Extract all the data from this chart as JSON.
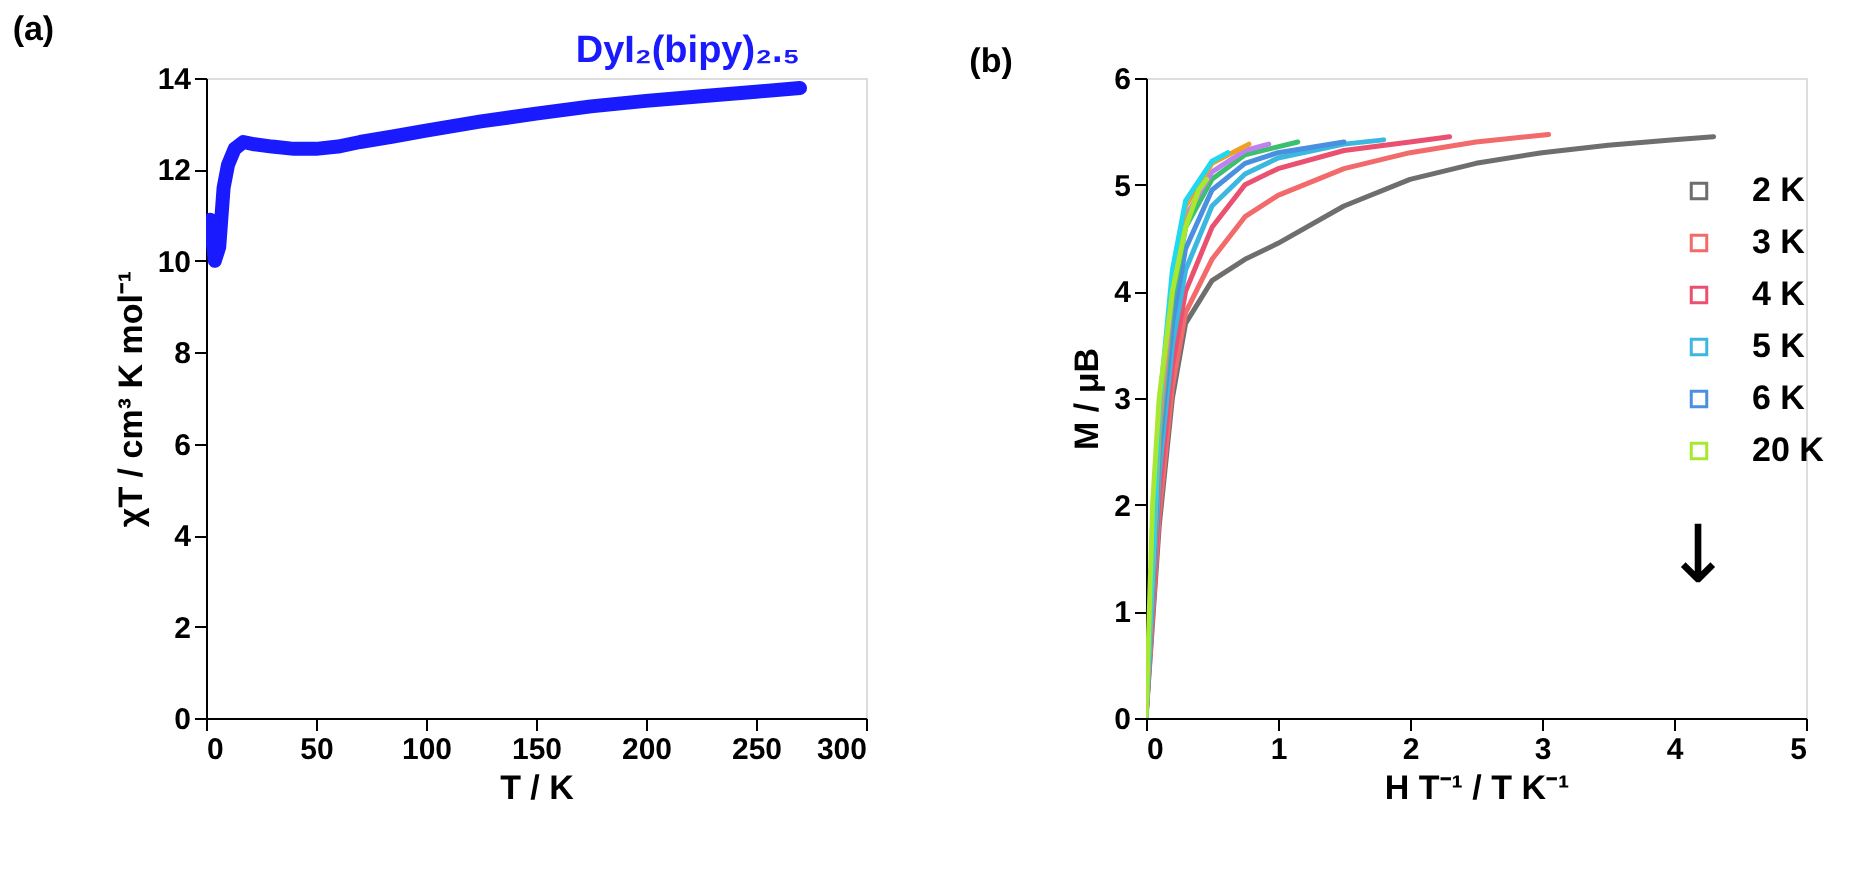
{
  "chart_data": [
    {
      "type": "line",
      "title": "(a)",
      "xlabel": "T / K",
      "ylabel": "χT / cm³ K mol⁻¹",
      "xlim": [
        0,
        300
      ],
      "xticks": [
        0,
        50,
        100,
        150,
        200,
        250,
        300
      ],
      "ylim": [
        0,
        14
      ],
      "yticks": [
        0,
        2,
        4,
        6,
        8,
        10,
        12,
        14
      ],
      "grid": false,
      "legend": false,
      "series": [
        {
          "name": "DyI₂(bipy)₂.₅",
          "color": "#1a1aff",
          "x": [
            2,
            4,
            6,
            8,
            10,
            13,
            17,
            22,
            30,
            40,
            50,
            60,
            70,
            85,
            100,
            125,
            150,
            175,
            200,
            225,
            250,
            270
          ],
          "values": [
            10.9,
            10.0,
            10.3,
            11.6,
            12.1,
            12.45,
            12.6,
            12.55,
            12.5,
            12.45,
            12.45,
            12.5,
            12.6,
            12.72,
            12.85,
            13.05,
            13.22,
            13.38,
            13.5,
            13.6,
            13.7,
            13.78
          ]
        }
      ]
    },
    {
      "type": "line",
      "title": "(b)",
      "xlabel": "H T⁻¹ / T K⁻¹",
      "ylabel": "M / μB",
      "xlim": [
        0,
        5
      ],
      "xticks": [
        0,
        1,
        2,
        3,
        4,
        5
      ],
      "ylim": [
        0,
        6
      ],
      "yticks": [
        0,
        1,
        2,
        3,
        4,
        5,
        6
      ],
      "grid": false,
      "legend": "right",
      "annotations": [
        "↓"
      ],
      "series": [
        {
          "name": "2 K",
          "color": "#6e6e6e",
          "x": [
            0,
            0.1,
            0.2,
            0.3,
            0.5,
            0.75,
            1.0,
            1.5,
            2.0,
            2.5,
            3.0,
            3.5,
            4.0,
            4.3
          ],
          "values": [
            0,
            1.8,
            3.0,
            3.7,
            4.1,
            4.3,
            4.45,
            4.8,
            5.05,
            5.2,
            5.3,
            5.37,
            5.42,
            5.45
          ]
        },
        {
          "name": "3 K",
          "color": "#f26a6a",
          "x": [
            0,
            0.1,
            0.2,
            0.3,
            0.5,
            0.75,
            1.0,
            1.5,
            2.0,
            2.5,
            3.05
          ],
          "values": [
            0,
            1.9,
            3.1,
            3.8,
            4.3,
            4.7,
            4.9,
            5.15,
            5.3,
            5.4,
            5.47
          ]
        },
        {
          "name": "4 K",
          "color": "#ea5070",
          "x": [
            0,
            0.1,
            0.2,
            0.3,
            0.5,
            0.75,
            1.0,
            1.5,
            2.0,
            2.3
          ],
          "values": [
            0,
            2.1,
            3.3,
            4.0,
            4.6,
            5.0,
            5.15,
            5.32,
            5.4,
            5.45
          ]
        },
        {
          "name": "5 K",
          "color": "#3cb8e0",
          "x": [
            0,
            0.1,
            0.2,
            0.3,
            0.5,
            0.75,
            1.0,
            1.5,
            1.8
          ],
          "values": [
            0,
            2.3,
            3.5,
            4.2,
            4.8,
            5.1,
            5.25,
            5.38,
            5.42
          ]
        },
        {
          "name": "6 K",
          "color": "#4a8fe0",
          "x": [
            0,
            0.1,
            0.2,
            0.3,
            0.5,
            0.75,
            1.0,
            1.5
          ],
          "values": [
            0,
            2.5,
            3.7,
            4.4,
            4.95,
            5.2,
            5.3,
            5.4
          ]
        },
        {
          "color": "#3cc070",
          "x": [
            0,
            0.1,
            0.2,
            0.3,
            0.5,
            0.75,
            1.15
          ],
          "values": [
            0,
            2.6,
            3.9,
            4.6,
            5.05,
            5.28,
            5.4
          ]
        },
        {
          "color": "#c080f0",
          "x": [
            0,
            0.1,
            0.2,
            0.3,
            0.5,
            0.75,
            0.93
          ],
          "values": [
            0,
            2.7,
            4.0,
            4.7,
            5.12,
            5.32,
            5.38
          ]
        },
        {
          "color": "#f0a020",
          "x": [
            0,
            0.1,
            0.2,
            0.3,
            0.5,
            0.78
          ],
          "values": [
            0,
            2.8,
            4.1,
            4.8,
            5.2,
            5.38
          ]
        },
        {
          "color": "#20d8f0",
          "x": [
            0,
            0.1,
            0.2,
            0.3,
            0.5,
            0.62
          ],
          "values": [
            0,
            2.9,
            4.2,
            4.85,
            5.22,
            5.3
          ]
        },
        {
          "name": "20 K",
          "color": "#a8e830",
          "x": [
            0,
            0.05,
            0.1,
            0.2,
            0.3,
            0.4,
            0.46
          ],
          "values": [
            0,
            2.0,
            3.0,
            4.0,
            4.6,
            4.95,
            5.05
          ]
        }
      ]
    }
  ]
}
